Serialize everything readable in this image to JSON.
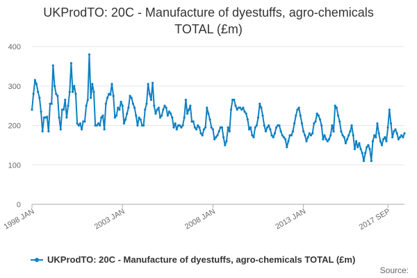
{
  "chart_data": {
    "type": "line",
    "title": "UKProdTO: 20C - Manufacture of dyestuffs, agro-chemicals TOTAL (£m)",
    "xlabel": "",
    "ylabel": "",
    "ylim": [
      0,
      400
    ],
    "yticks": [
      0,
      100,
      200,
      300,
      400
    ],
    "xtick_labels": [
      {
        "label": "1998 JAN",
        "index": 0
      },
      {
        "label": "2003 JAN",
        "index": 60
      },
      {
        "label": "2008 JAN",
        "index": 120
      },
      {
        "label": "2013 JAN",
        "index": 180
      },
      {
        "label": "2017 SEP",
        "index": 236
      }
    ],
    "grid": true,
    "legend": "bottom",
    "series": [
      {
        "name": "UKProdTO: 20C - Manufacture of dyestuffs, agro-chemicals TOTAL (£m)",
        "color": "#0f7fc1",
        "x_start": "1998 JAN",
        "values": [
          240,
          280,
          315,
          305,
          285,
          270,
          235,
          185,
          220,
          220,
          222,
          185,
          255,
          255,
          352,
          300,
          280,
          275,
          220,
          190,
          240,
          240,
          265,
          220,
          250,
          285,
          358,
          285,
          300,
          280,
          205,
          200,
          205,
          190,
          210,
          210,
          250,
          265,
          380,
          270,
          305,
          285,
          200,
          200,
          205,
          200,
          220,
          225,
          190,
          255,
          270,
          280,
          278,
          305,
          275,
          220,
          225,
          245,
          240,
          260,
          250,
          205,
          215,
          230,
          245,
          275,
          270,
          255,
          245,
          225,
          200,
          220,
          215,
          200,
          200,
          240,
          255,
          305,
          280,
          265,
          308,
          250,
          230,
          240,
          245,
          220,
          225,
          240,
          250,
          245,
          225,
          235,
          230,
          220,
          195,
          205,
          190,
          200,
          200,
          195,
          200,
          220,
          265,
          230,
          240,
          250,
          210,
          210,
          195,
          190,
          200,
          195,
          180,
          175,
          190,
          195,
          245,
          230,
          215,
          195,
          190,
          165,
          170,
          175,
          185,
          195,
          195,
          170,
          150,
          160,
          195,
          185,
          240,
          265,
          265,
          250,
          240,
          245,
          245,
          240,
          245,
          235,
          230,
          215,
          190,
          195,
          175,
          170,
          195,
          200,
          220,
          255,
          245,
          225,
          200,
          185,
          195,
          200,
          190,
          175,
          170,
          180,
          195,
          200,
          200,
          185,
          175,
          170,
          165,
          145,
          160,
          175,
          175,
          185,
          205,
          225,
          240,
          245,
          225,
          205,
          185,
          175,
          160,
          170,
          180,
          175,
          180,
          205,
          210,
          230,
          225,
          215,
          200,
          165,
          175,
          165,
          160,
          165,
          175,
          200,
          185,
          250,
          245,
          225,
          210,
          185,
          175,
          170,
          155,
          165,
          175,
          185,
          200,
          175,
          140,
          160,
          145,
          155,
          140,
          130,
          110,
          130,
          145,
          150,
          140,
          110,
          160,
          175,
          170,
          205,
          180,
          160,
          150,
          165,
          170,
          160,
          195,
          240,
          205,
          170,
          185,
          190,
          180,
          165,
          170,
          175,
          170,
          180
        ]
      }
    ]
  },
  "legend": {
    "label": "UKProdTO: 20C - Manufacture of dyestuffs, agro-chemicals TOTAL (£m)"
  },
  "source": {
    "label": "Source:"
  }
}
